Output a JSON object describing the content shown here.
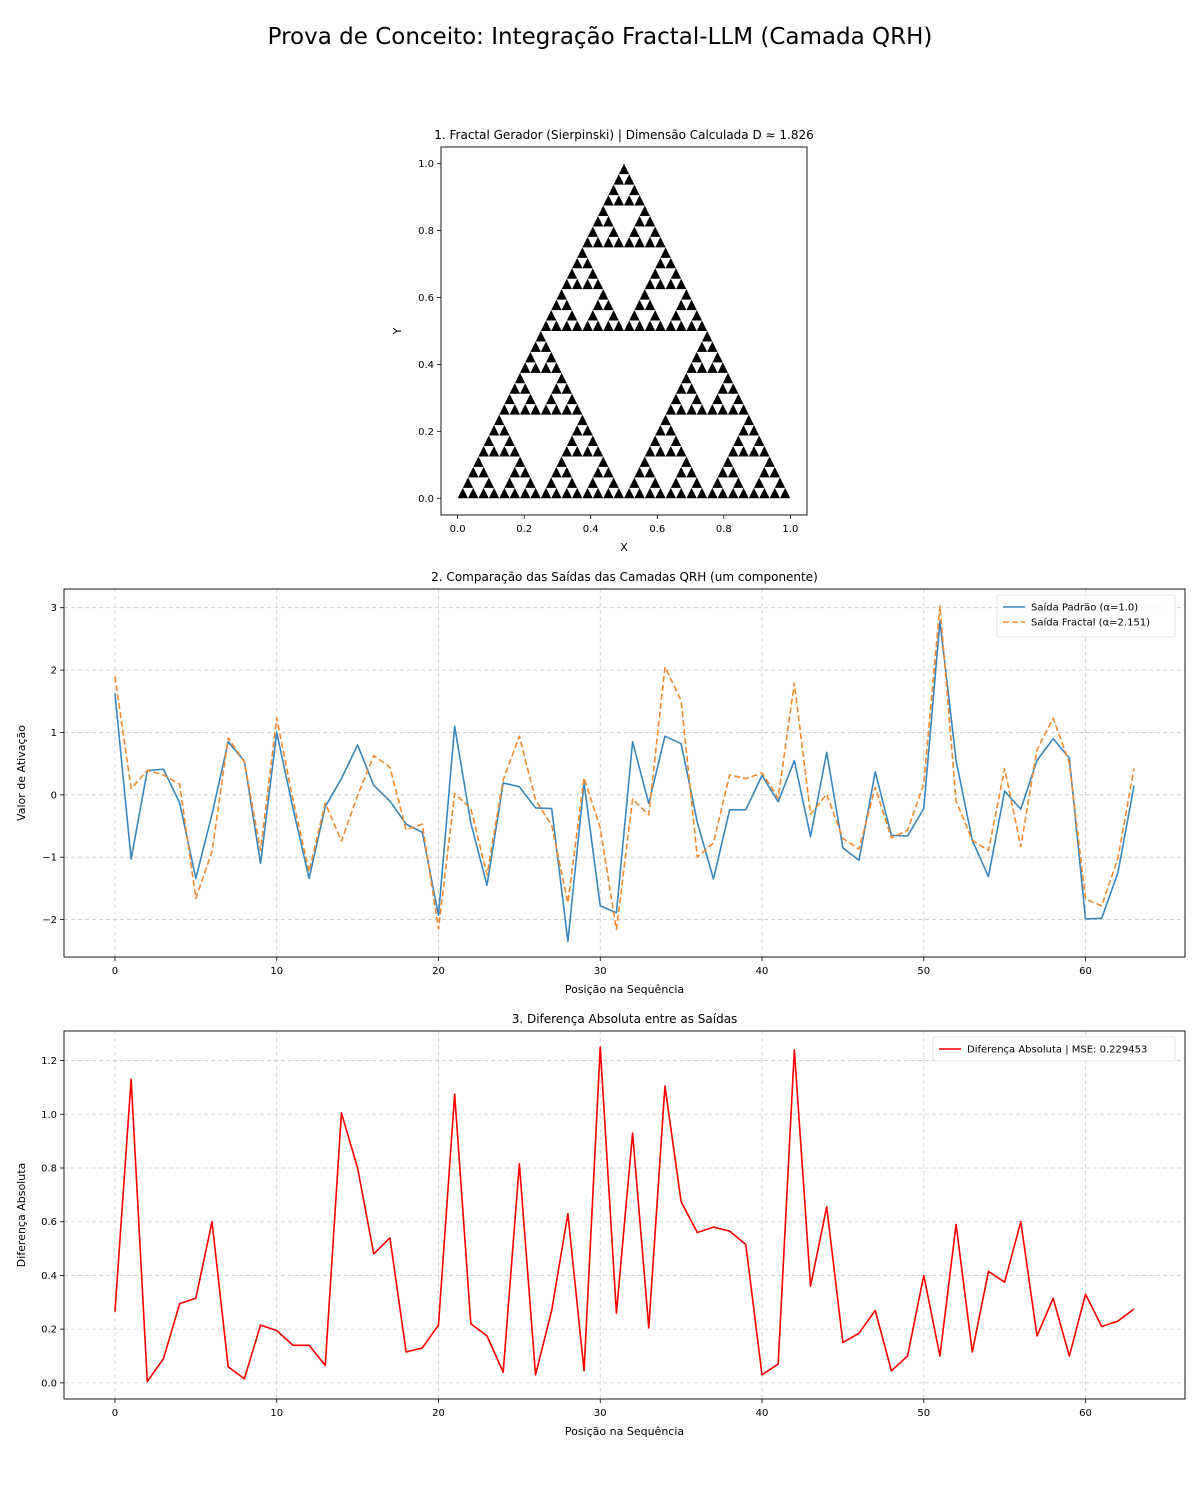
{
  "suptitle": "Prova de Conceito: Integração Fractal-LLM (Camada QRH)",
  "colors": {
    "standard": "#3a86bd",
    "fractal": "#f28b30",
    "diff": "#ff0000",
    "grid": "#cccccc",
    "fractal_points": "#000000"
  },
  "chart_data": [
    {
      "type": "scatter",
      "title": "1. Fractal Gerador (Sierpinski) | Dimensão Calculada D ≈ 1.826",
      "xlabel": "X",
      "ylabel": "Y",
      "xlim": [
        -0.05,
        1.05
      ],
      "ylim": [
        -0.05,
        1.05
      ],
      "xticks": [
        0.0,
        0.2,
        0.4,
        0.6,
        0.8,
        1.0
      ],
      "yticks": [
        0.0,
        0.2,
        0.4,
        0.6,
        0.8,
        1.0
      ],
      "tick_labels_x": [
        "0.0",
        "0.2",
        "0.4",
        "0.6",
        "0.8",
        "1.0"
      ],
      "tick_labels_y": [
        "0.0",
        "0.2",
        "0.4",
        "0.6",
        "0.8",
        "1.0"
      ],
      "grid": false,
      "vertices": [
        [
          0,
          0
        ],
        [
          1,
          0
        ],
        [
          0.5,
          1
        ]
      ],
      "depth": 5
    },
    {
      "type": "line",
      "title": "2. Comparação das Saídas das Camadas QRH (um componente)",
      "xlabel": "Posição na Sequência",
      "ylabel": "Valor de Ativação",
      "xlim": [
        -3.15,
        66.15
      ],
      "ylim": [
        -2.6,
        3.3
      ],
      "xticks": [
        0,
        10,
        20,
        30,
        40,
        50,
        60
      ],
      "yticks": [
        -2,
        -1,
        0,
        1,
        2,
        3
      ],
      "tick_labels_x": [
        "0",
        "10",
        "20",
        "30",
        "40",
        "50",
        "60"
      ],
      "tick_labels_y": [
        "−2",
        "−1",
        "0",
        "1",
        "2",
        "3"
      ],
      "grid": true,
      "legend_position": "upper right",
      "series": [
        {
          "name": "Saída Padrão (α=1.0)",
          "style": "solid",
          "values": [
            1.63,
            -1.03,
            0.39,
            0.41,
            -0.13,
            -1.34,
            -0.31,
            0.85,
            0.54,
            -1.1,
            1.0,
            -0.21,
            -1.34,
            -0.19,
            0.26,
            0.8,
            0.15,
            -0.1,
            -0.47,
            -0.6,
            -1.93,
            1.1,
            -0.45,
            -1.45,
            0.19,
            0.13,
            -0.21,
            -0.22,
            -2.35,
            0.19,
            -1.78,
            -1.89,
            0.85,
            -0.14,
            0.94,
            0.82,
            -0.44,
            -1.35,
            -0.24,
            -0.24,
            0.31,
            -0.11,
            0.55,
            -0.67,
            0.68,
            -0.85,
            -1.05,
            0.37,
            -0.65,
            -0.66,
            -0.22,
            2.78,
            0.55,
            -0.73,
            -1.31,
            0.06,
            -0.23,
            0.55,
            0.9,
            0.59,
            -1.99,
            -1.98,
            -1.25,
            0.15
          ]
        },
        {
          "name": "Saída Fractal (α=2.151)",
          "style": "dashed",
          "values": [
            1.9,
            0.1,
            0.39,
            0.32,
            0.17,
            -1.66,
            -0.91,
            0.91,
            0.53,
            -0.89,
            1.23,
            -0.07,
            -1.23,
            -0.13,
            -0.74,
            -0.01,
            0.63,
            0.44,
            -0.56,
            -0.47,
            -2.15,
            0.02,
            -0.22,
            -1.28,
            0.24,
            0.94,
            -0.08,
            -0.49,
            -1.73,
            0.27,
            -0.53,
            -2.16,
            -0.07,
            -0.32,
            2.05,
            1.51,
            -1.0,
            -0.77,
            0.32,
            0.26,
            0.35,
            -0.05,
            1.79,
            -0.31,
            0.01,
            -0.7,
            -0.87,
            0.12,
            -0.69,
            -0.57,
            0.18,
            3.03,
            -0.1,
            -0.73,
            -0.89,
            0.42,
            -0.83,
            0.72,
            1.23,
            0.51,
            -1.67,
            -1.78,
            -1.02,
            0.42
          ]
        }
      ]
    },
    {
      "type": "line",
      "title": "3. Diferença Absoluta entre as Saídas",
      "xlabel": "Posição na Sequência",
      "ylabel": "Diferença Absoluta",
      "xlim": [
        -3.15,
        66.15
      ],
      "ylim": [
        -0.06,
        1.31
      ],
      "xticks": [
        0,
        10,
        20,
        30,
        40,
        50,
        60
      ],
      "yticks": [
        0.0,
        0.2,
        0.4,
        0.6,
        0.8,
        1.0,
        1.2
      ],
      "tick_labels_x": [
        "0",
        "10",
        "20",
        "30",
        "40",
        "50",
        "60"
      ],
      "tick_labels_y": [
        "0.0",
        "0.2",
        "0.4",
        "0.6",
        "0.8",
        "1.0",
        "1.2"
      ],
      "grid": true,
      "legend_position": "upper right",
      "series": [
        {
          "name": "Diferença Absoluta | MSE: 0.229453",
          "style": "solid",
          "values": [
            0.265,
            1.13,
            0.005,
            0.09,
            0.295,
            0.315,
            0.6,
            0.06,
            0.015,
            0.215,
            0.195,
            0.14,
            0.14,
            0.065,
            1.005,
            0.8,
            0.48,
            0.54,
            0.115,
            0.13,
            0.215,
            1.075,
            0.22,
            0.175,
            0.04,
            0.815,
            0.03,
            0.27,
            0.63,
            0.045,
            1.25,
            0.26,
            0.93,
            0.205,
            1.105,
            0.675,
            0.56,
            0.58,
            0.565,
            0.515,
            0.03,
            0.07,
            1.24,
            0.36,
            0.655,
            0.15,
            0.185,
            0.27,
            0.045,
            0.1,
            0.4,
            0.1,
            0.59,
            0.115,
            0.415,
            0.375,
            0.6,
            0.175,
            0.315,
            0.1,
            0.33,
            0.21,
            0.23,
            0.275
          ]
        }
      ]
    }
  ]
}
